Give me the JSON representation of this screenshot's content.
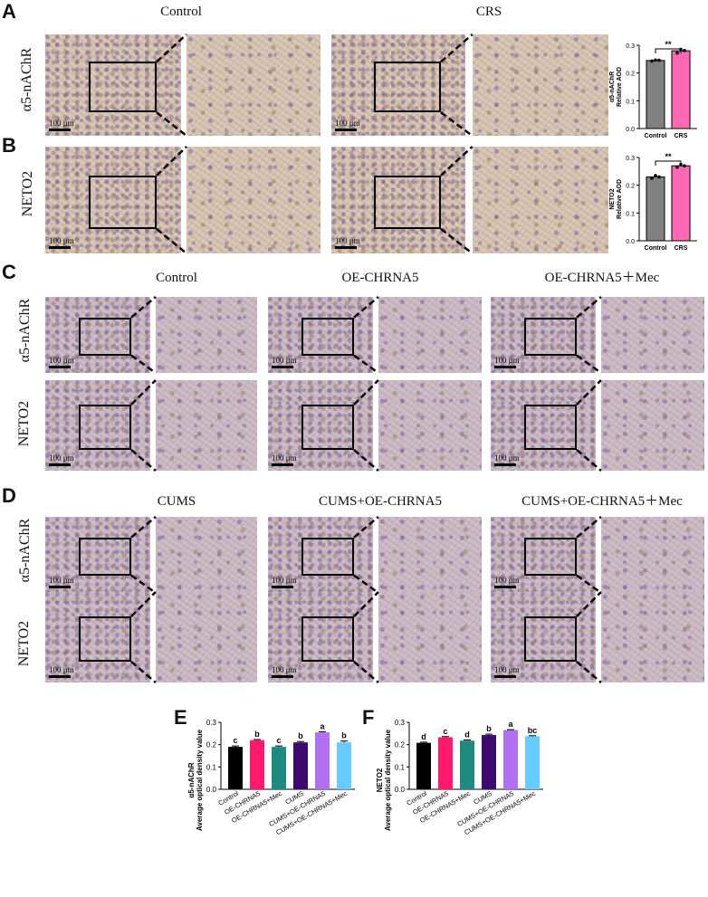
{
  "panel_letters": {
    "a": "A",
    "b": "B",
    "c": "C",
    "d": "D",
    "e": "E",
    "f": "F"
  },
  "columns": {
    "ab": [
      "Control",
      "CRS"
    ],
    "c": [
      "Control",
      "OE-CHRNA5",
      "OE-CHRNA5＋Mec"
    ],
    "d": [
      "CUMS",
      "CUMS+OE-CHRNA5",
      "CUMS+OE-CHRNA5＋Mec"
    ]
  },
  "rows": {
    "a": "α5-nAChR",
    "b": "NETO2",
    "top": "α5-nAChR",
    "bottom": "NETO2"
  },
  "scale_bar": "100 μm",
  "chart_data": [
    {
      "id": "A",
      "type": "bar",
      "categories": [
        "Control",
        "CRS"
      ],
      "values": [
        0.245,
        0.28
      ],
      "points": [
        [
          0.243,
          0.247,
          0.246
        ],
        [
          0.272,
          0.285,
          0.281
        ]
      ],
      "ylabel": "α5-nAChR\nRelative AOD",
      "ylim": [
        0,
        0.3
      ],
      "yticks": [
        0.0,
        0.1,
        0.2,
        0.3
      ],
      "significance": "**",
      "colors": [
        "#808080",
        "#ff69b4"
      ]
    },
    {
      "id": "B",
      "type": "bar",
      "categories": [
        "Control",
        "CRS"
      ],
      "values": [
        0.23,
        0.27
      ],
      "points": [
        [
          0.225,
          0.235,
          0.23
        ],
        [
          0.265,
          0.275,
          0.27
        ]
      ],
      "ylabel": "NETO2\nRelative AOD",
      "ylim": [
        0,
        0.3
      ],
      "yticks": [
        0.0,
        0.1,
        0.2,
        0.3
      ],
      "significance": "**",
      "colors": [
        "#808080",
        "#ff69b4"
      ]
    },
    {
      "id": "E",
      "type": "bar",
      "categories": [
        "Control",
        "OE-CHRNA5",
        "OE-CHRNA5+Mec",
        "CUMS",
        "CUMS+OE-CHRNA5",
        "CUMS+OE-CHRNA5+Mec"
      ],
      "values": [
        0.19,
        0.22,
        0.19,
        0.21,
        0.255,
        0.21
      ],
      "errors": [
        0.004,
        0.003,
        0.004,
        0.004,
        0.003,
        0.006
      ],
      "letters": [
        "c",
        "b",
        "c",
        "b",
        "a",
        "b"
      ],
      "ylabel": "α5-nAChR\nAverage optical density value",
      "ylim": [
        0,
        0.3
      ],
      "yticks": [
        0.0,
        0.1,
        0.2,
        0.3
      ],
      "colors": [
        "#000000",
        "#ff1a6e",
        "#1f8a80",
        "#3d0a6e",
        "#b070f0",
        "#66ccff"
      ]
    },
    {
      "id": "F",
      "type": "bar",
      "categories": [
        "Control",
        "OE-CHRNA5",
        "OE-CHRNA5+Mec",
        "CUMS",
        "CUMS+OE-CHRNA5",
        "CUMS+OE-CHRNA5+Mec"
      ],
      "values": [
        0.208,
        0.233,
        0.218,
        0.243,
        0.265,
        0.238
      ],
      "errors": [
        0.003,
        0.003,
        0.003,
        0.004,
        0.002,
        0.002
      ],
      "letters": [
        "d",
        "c",
        "d",
        "b",
        "a",
        "bc"
      ],
      "ylabel": "NETO2\nAverage optical density value",
      "ylim": [
        0,
        0.3
      ],
      "yticks": [
        0.0,
        0.1,
        0.2,
        0.3
      ],
      "colors": [
        "#000000",
        "#ff1a6e",
        "#1f8a80",
        "#3d0a6e",
        "#b070f0",
        "#66ccff"
      ]
    }
  ]
}
